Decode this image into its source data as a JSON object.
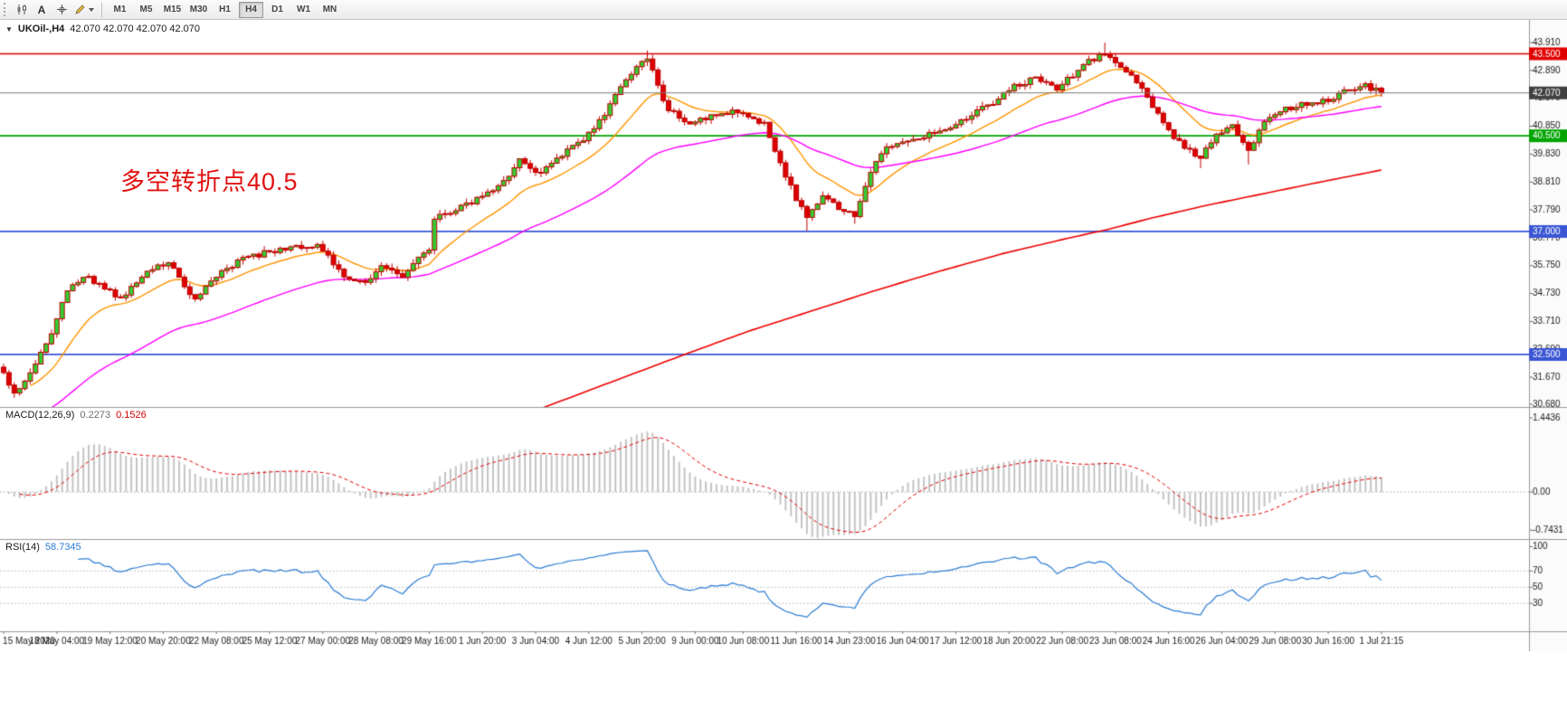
{
  "toolbar": {
    "text_tool_label": "A",
    "timeframes": [
      "M1",
      "M5",
      "M15",
      "M30",
      "H1",
      "H4",
      "D1",
      "W1",
      "MN"
    ],
    "active_timeframe": "H4"
  },
  "main_chart": {
    "collapse_icon": "▼",
    "symbol_label": "UKOil-,H4",
    "ohlc_label": "42.070 42.070 42.070 42.070",
    "annotation": {
      "text": "多空转折点40.5",
      "color": "#e01212"
    },
    "current_price": "42.070",
    "current_price_badge_color": "#404040",
    "levels": [
      {
        "value": "43.500",
        "num": 43.5,
        "color": "#e00000"
      },
      {
        "value": "40.500",
        "num": 40.5,
        "color": "#00a400"
      },
      {
        "value": "37.000",
        "num": 37.0,
        "color": "#3a56d4"
      },
      {
        "value": "32.500",
        "num": 32.5,
        "color": "#3a56d4"
      }
    ],
    "y_ticks": [
      "43.910",
      "42.890",
      "41.870",
      "40.850",
      "39.830",
      "38.810",
      "37.790",
      "36.770",
      "35.750",
      "34.730",
      "33.710",
      "32.690",
      "31.670",
      "30.680"
    ]
  },
  "macd_panel": {
    "label": "MACD(12,26,9)",
    "main_value": "0.2273",
    "signal_value": "0.1526",
    "y_ticks": [
      "1.4436",
      "0.00",
      "-0.7431"
    ]
  },
  "rsi_panel": {
    "label": "RSI(14)",
    "value": "58.7345",
    "period": 14,
    "y_ticks": [
      "100",
      "70",
      "50",
      "30"
    ]
  },
  "time_axis": {
    "labels": [
      "15 May 2020",
      "18 May 04:00",
      "19 May 12:00",
      "20 May 20:00",
      "22 May 08:00",
      "25 May 12:00",
      "27 May 00:00",
      "28 May 08:00",
      "29 May 16:00",
      "1 Jun 20:00",
      "3 Jun 04:00",
      "4 Jun 12:00",
      "5 Jun 20:00",
      "9 Jun 00:00",
      "10 Jun 08:00",
      "11 Jun 16:00",
      "14 Jun 23:00",
      "16 Jun 04:00",
      "17 Jun 12:00",
      "18 Jun 20:00",
      "22 Jun 08:00",
      "23 Jun 08:00",
      "24 Jun 16:00",
      "26 Jun 04:00",
      "29 Jun 08:00",
      "30 Jun 16:00",
      "1 Jul 21:15"
    ]
  },
  "chart_data": {
    "type": "candlestick",
    "symbol": "UKOil-",
    "timeframe": "H4",
    "bar_count": 260,
    "last_close": 42.07,
    "price_axis_range": [
      30.58,
      44.74
    ],
    "macd_range": [
      -0.88,
      1.62
    ],
    "rsi_range": [
      0,
      105
    ],
    "close_anchors": [
      [
        0,
        31.8
      ],
      [
        2,
        31.15
      ],
      [
        4,
        31.5
      ],
      [
        6,
        32.2
      ],
      [
        9,
        33.2
      ],
      [
        12,
        34.9
      ],
      [
        16,
        35.35
      ],
      [
        19,
        34.85
      ],
      [
        22,
        34.6
      ],
      [
        25,
        35.1
      ],
      [
        28,
        35.7
      ],
      [
        31,
        35.9
      ],
      [
        36,
        34.5
      ],
      [
        39,
        35.2
      ],
      [
        44,
        35.9
      ],
      [
        49,
        36.2
      ],
      [
        54,
        36.4
      ],
      [
        59,
        36.5
      ],
      [
        64,
        35.4
      ],
      [
        68,
        35.1
      ],
      [
        71,
        35.7
      ],
      [
        75,
        35.3
      ],
      [
        78,
        36.0
      ],
      [
        80,
        36.4
      ],
      [
        81,
        37.5
      ],
      [
        85,
        37.8
      ],
      [
        89,
        38.2
      ],
      [
        93,
        38.6
      ],
      [
        97,
        39.6
      ],
      [
        101,
        39.1
      ],
      [
        104,
        39.7
      ],
      [
        108,
        40.2
      ],
      [
        112,
        41.0
      ],
      [
        116,
        42.3
      ],
      [
        119,
        43.1
      ],
      [
        121,
        43.4
      ],
      [
        123,
        42.3
      ],
      [
        125,
        41.4
      ],
      [
        129,
        41.0
      ],
      [
        134,
        41.3
      ],
      [
        139,
        41.4
      ],
      [
        143,
        40.9
      ],
      [
        146,
        39.5
      ],
      [
        149,
        38.2
      ],
      [
        151,
        37.5
      ],
      [
        154,
        38.4
      ],
      [
        157,
        37.9
      ],
      [
        160,
        37.6
      ],
      [
        163,
        39.2
      ],
      [
        165,
        39.9
      ],
      [
        169,
        40.3
      ],
      [
        175,
        40.6
      ],
      [
        180,
        41.0
      ],
      [
        185,
        41.6
      ],
      [
        190,
        42.3
      ],
      [
        194,
        42.6
      ],
      [
        198,
        42.2
      ],
      [
        203,
        43.1
      ],
      [
        207,
        43.5
      ],
      [
        210,
        43.0
      ],
      [
        214,
        42.3
      ],
      [
        218,
        40.9
      ],
      [
        222,
        40.1
      ],
      [
        225,
        39.7
      ],
      [
        228,
        40.5
      ],
      [
        231,
        40.9
      ],
      [
        234,
        40.0
      ],
      [
        237,
        41.0
      ],
      [
        241,
        41.5
      ],
      [
        245,
        41.7
      ],
      [
        249,
        41.8
      ],
      [
        253,
        42.2
      ],
      [
        256,
        42.35
      ],
      [
        259,
        42.07
      ]
    ],
    "spikes": [
      {
        "i": 2,
        "low": 30.92
      },
      {
        "i": 121,
        "high": 43.62
      },
      {
        "i": 151,
        "low": 37.02
      },
      {
        "i": 160,
        "low": 37.28
      },
      {
        "i": 207,
        "high": 43.91
      },
      {
        "i": 225,
        "low": 39.32
      },
      {
        "i": 234,
        "low": 39.45
      }
    ],
    "moving_averages": [
      {
        "name": "ma-fast",
        "type": "ema",
        "period": 15,
        "seed": 31.2,
        "start": 5,
        "color": "#ff9500",
        "width": 1.4
      },
      {
        "name": "ma-medium",
        "type": "ema",
        "period": 49,
        "seed": 29.8,
        "start": 8,
        "color": "#ff00ff",
        "width": 1.4
      },
      {
        "name": "ma-slow",
        "type": "path",
        "color": "#ee0000",
        "width": 1.6,
        "path": [
          [
            100,
            30.45
          ],
          [
            115,
            31.55
          ],
          [
            128,
            32.5
          ],
          [
            140,
            33.35
          ],
          [
            152,
            34.1
          ],
          [
            164,
            34.85
          ],
          [
            176,
            35.55
          ],
          [
            188,
            36.2
          ],
          [
            200,
            36.75
          ],
          [
            207,
            37.05
          ],
          [
            216,
            37.5
          ],
          [
            226,
            37.95
          ],
          [
            236,
            38.35
          ],
          [
            246,
            38.75
          ],
          [
            259,
            39.25
          ]
        ]
      }
    ],
    "colors": {
      "bull": "#33cc33",
      "bear": "#dd0000",
      "outline": "#c00000",
      "current_price_line": "#7a7a7a",
      "macd_hist": "#c4c4c4",
      "macd_signal": "#e00000",
      "rsi_line": "#2b7cd3"
    }
  }
}
